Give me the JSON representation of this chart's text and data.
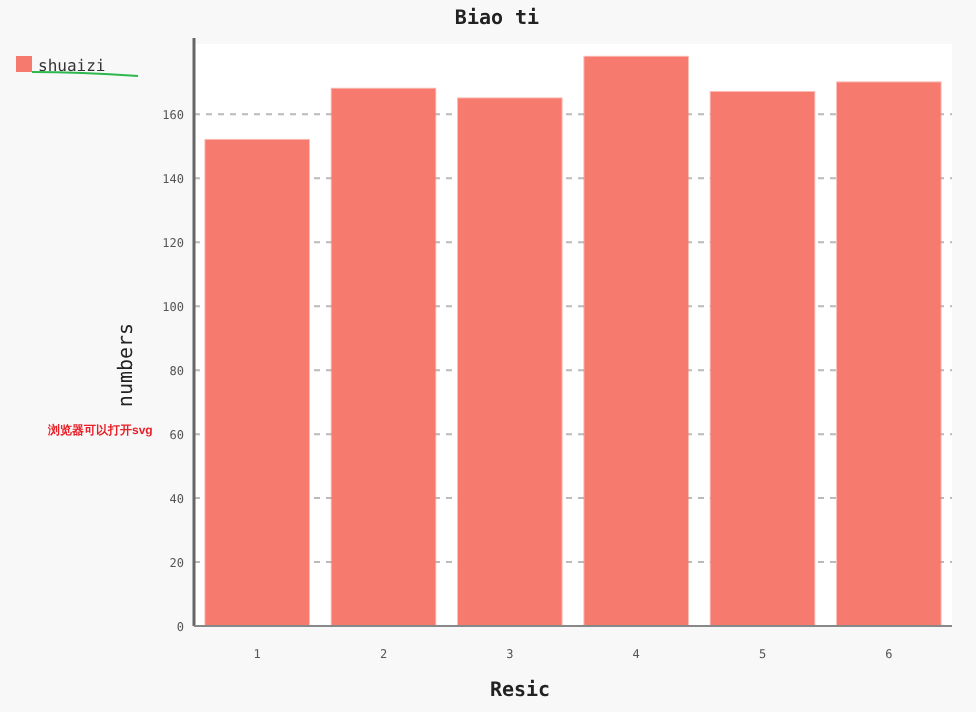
{
  "chart_data": {
    "type": "bar",
    "title": "Biao ti",
    "xlabel": "Resic",
    "ylabel": "numbers",
    "categories": [
      "1",
      "2",
      "3",
      "4",
      "5",
      "6"
    ],
    "series": [
      {
        "name": "shuaizi",
        "color": "#f77a6e",
        "values": [
          152,
          168,
          165,
          178,
          167,
          170
        ]
      }
    ],
    "ylim": [
      0,
      182
    ],
    "yticks": [
      0,
      20,
      40,
      60,
      80,
      100,
      120,
      140,
      160
    ],
    "grid": "y",
    "legend": "top left",
    "annotations": [
      "浏览器可以打开svg"
    ]
  }
}
